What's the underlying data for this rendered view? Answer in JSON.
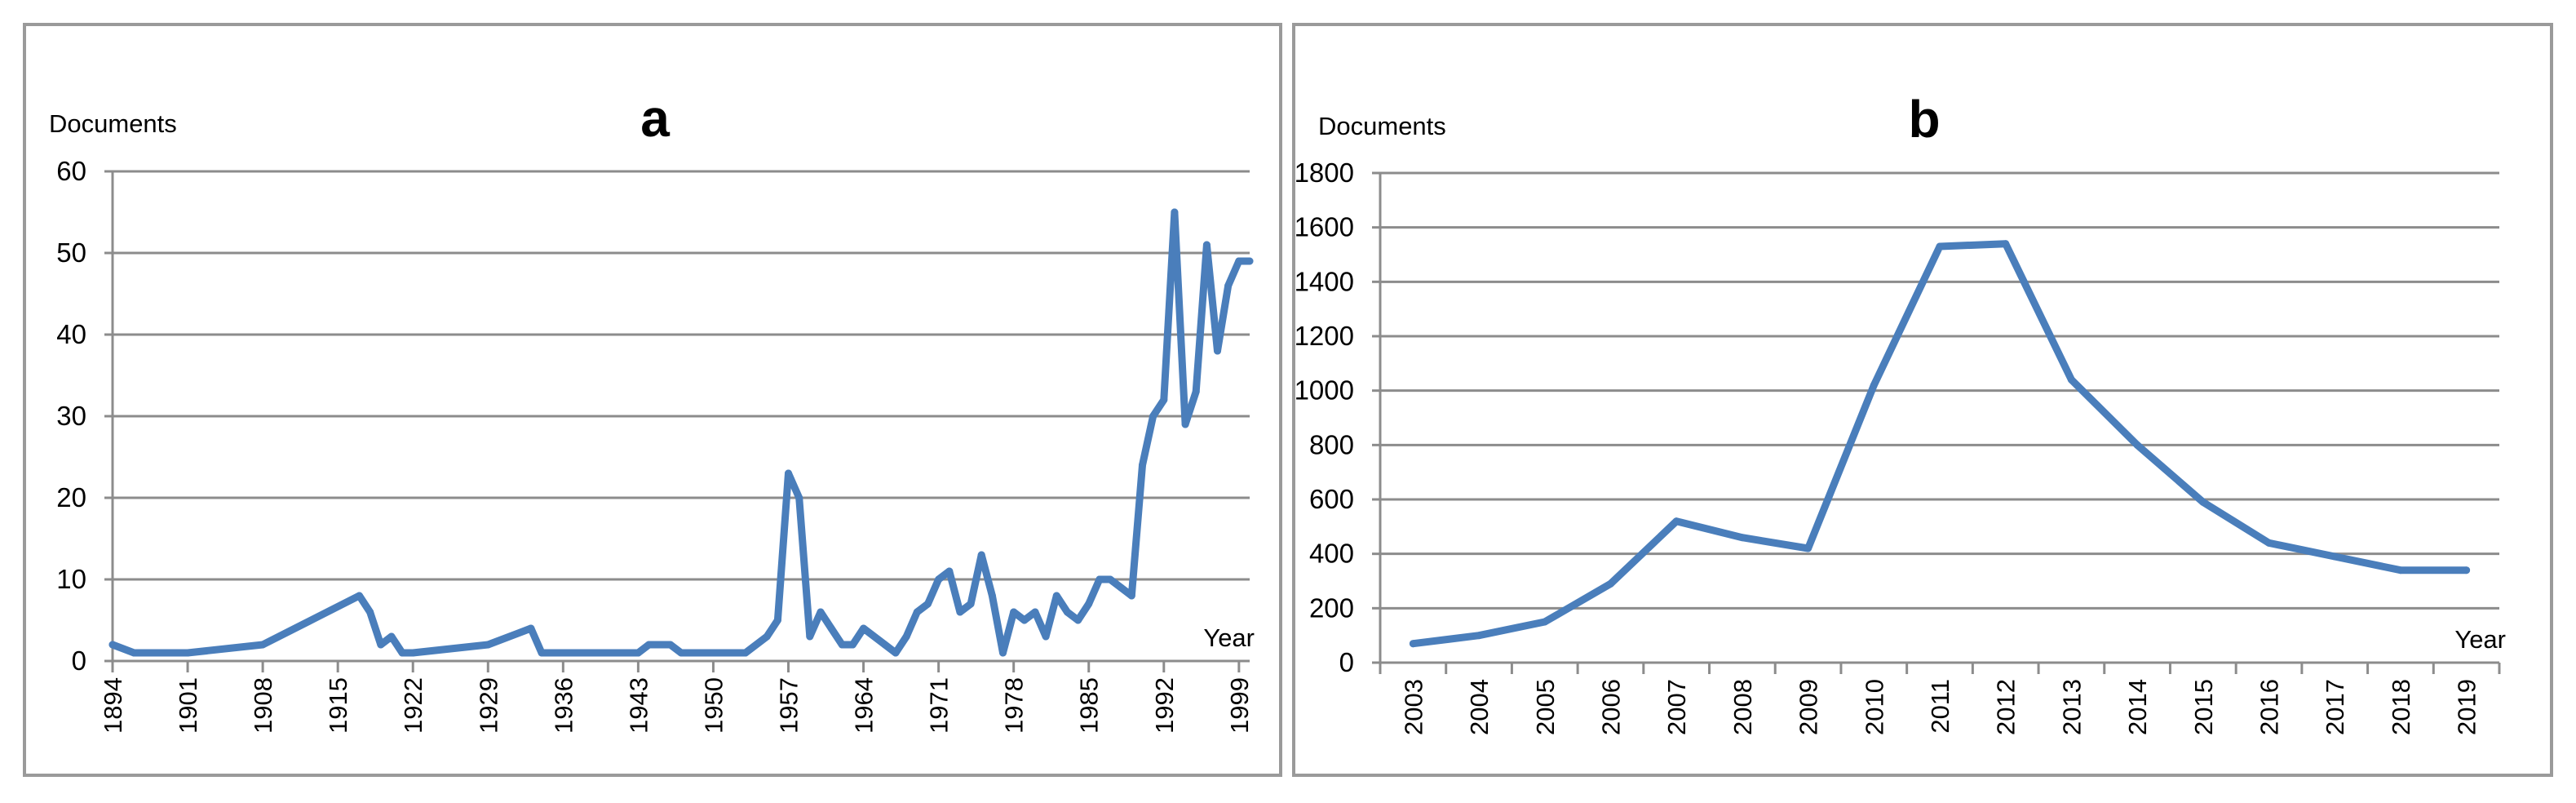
{
  "chart_data": [
    {
      "type": "line",
      "title": "a",
      "ylabel": "Documents",
      "xlabel": "Year",
      "ylim": [
        0,
        60
      ],
      "yticks": [
        "0",
        "10",
        "20",
        "30",
        "40",
        "50",
        "60"
      ],
      "xlim": [
        1894,
        2000
      ],
      "xticks": [
        "1894",
        "1901",
        "1908",
        "1915",
        "1922",
        "1929",
        "1936",
        "1943",
        "1950",
        "1957",
        "1964",
        "1971",
        "1978",
        "1985",
        "1992",
        "1999"
      ],
      "grid": true,
      "series": [
        {
          "x": [
            1894,
            1896,
            1901,
            1908,
            1917,
            1918,
            1919,
            1920,
            1921,
            1922,
            1929,
            1933,
            1934,
            1936,
            1943,
            1944,
            1946,
            1947,
            1950,
            1953,
            1955,
            1956,
            1957,
            1958,
            1959,
            1960,
            1961,
            1962,
            1963,
            1964,
            1966,
            1967,
            1968,
            1969,
            1970,
            1971,
            1972,
            1973,
            1974,
            1975,
            1976,
            1977,
            1978,
            1979,
            1980,
            1981,
            1982,
            1983,
            1984,
            1985,
            1986,
            1987,
            1988,
            1989,
            1990,
            1991,
            1992,
            1993,
            1994,
            1995,
            1996,
            1997,
            1998,
            1999,
            2000
          ],
          "values": [
            2,
            1,
            1,
            2,
            8,
            6,
            2,
            3,
            1,
            1,
            2,
            4,
            1,
            1,
            1,
            2,
            2,
            1,
            1,
            1,
            3,
            5,
            23,
            20,
            3,
            6,
            4,
            2,
            2,
            4,
            2,
            1,
            3,
            6,
            7,
            10,
            11,
            6,
            7,
            13,
            8,
            1,
            6,
            5,
            6,
            3,
            8,
            6,
            5,
            7,
            10,
            10,
            9,
            8,
            24,
            30,
            32,
            55,
            29,
            33,
            51,
            38,
            46,
            49,
            49
          ]
        }
      ]
    },
    {
      "type": "line",
      "title": "b",
      "ylabel": "Documents",
      "xlabel": "Year",
      "ylim": [
        0,
        1800
      ],
      "yticks": [
        "0",
        "200",
        "400",
        "600",
        "800",
        "1000",
        "1200",
        "1400",
        "1600",
        "1800"
      ],
      "categories": [
        "2003",
        "2004",
        "2005",
        "2006",
        "2007",
        "2008",
        "2009",
        "2010",
        "2011",
        "2012",
        "2013",
        "2014",
        "2015",
        "2016",
        "2017",
        "2018",
        "2019"
      ],
      "grid": true,
      "series": [
        {
          "values": [
            70,
            100,
            150,
            290,
            520,
            460,
            420,
            1020,
            1530,
            1540,
            1040,
            800,
            590,
            440,
            390,
            340,
            340
          ]
        }
      ]
    }
  ]
}
